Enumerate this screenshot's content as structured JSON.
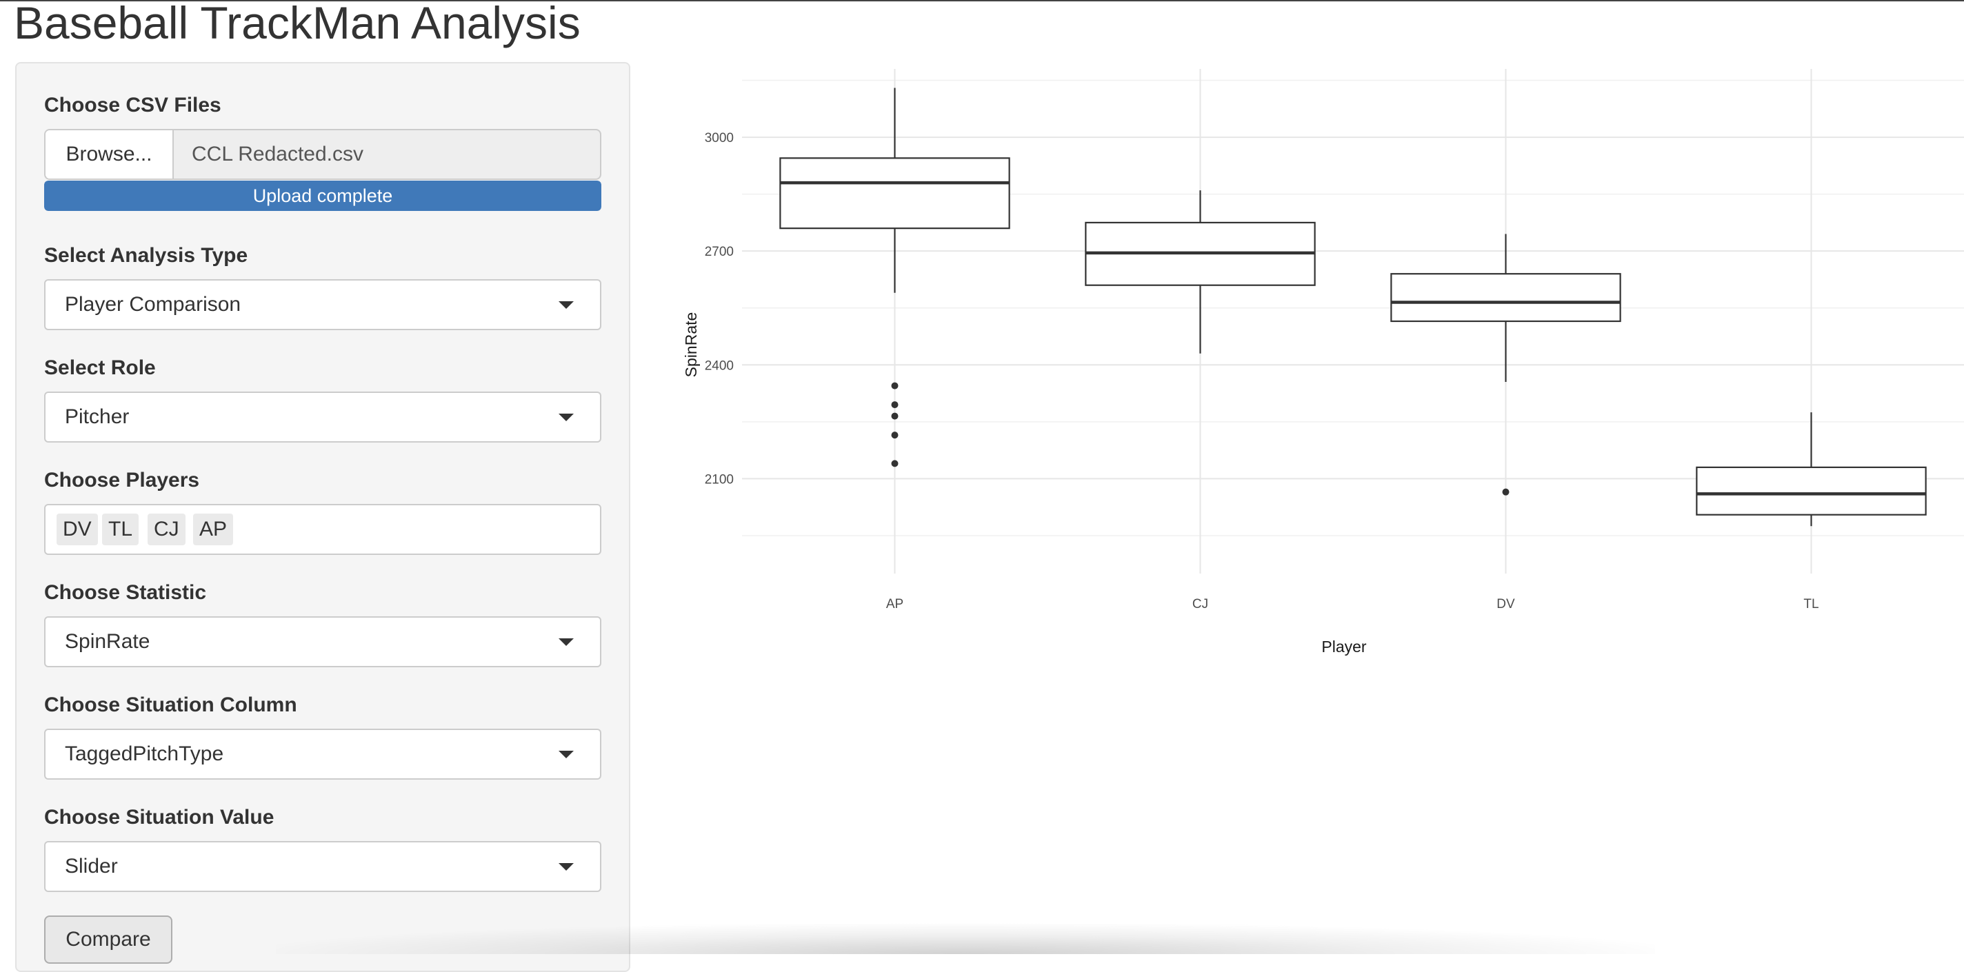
{
  "app": {
    "title": "Baseball TrackMan Analysis"
  },
  "sidebar": {
    "file": {
      "label": "Choose CSV Files",
      "browse_label": "Browse...",
      "filename": "CCL Redacted.csv",
      "progress_text": "Upload complete",
      "progress": 1.0
    },
    "analysis_type": {
      "label": "Select Analysis Type",
      "value": "Player Comparison"
    },
    "role": {
      "label": "Select Role",
      "value": "Pitcher"
    },
    "players": {
      "label": "Choose Players",
      "selected": [
        "DV",
        "TL",
        "CJ",
        "AP"
      ]
    },
    "statistic": {
      "label": "Choose Statistic",
      "value": "SpinRate"
    },
    "situation_column": {
      "label": "Choose Situation Column",
      "value": "TaggedPitchType"
    },
    "situation_value": {
      "label": "Choose Situation Value",
      "value": "Slider"
    },
    "compare_label": "Compare"
  },
  "chart_data": {
    "type": "boxplot",
    "title": "",
    "xlabel": "Player",
    "ylabel": "SpinRate",
    "categories": [
      "AP",
      "CJ",
      "DV",
      "TL"
    ],
    "ylim": [
      1850,
      3180
    ],
    "yticks": [
      2100,
      2400,
      2700,
      3000
    ],
    "grid": true,
    "legend": "none",
    "boxes": [
      {
        "category": "AP",
        "min": 2590,
        "q1": 2760,
        "median": 2880,
        "q3": 2945,
        "max": 3130,
        "outliers": [
          2345,
          2295,
          2265,
          2215,
          2140
        ]
      },
      {
        "category": "CJ",
        "min": 2430,
        "q1": 2610,
        "median": 2695,
        "q3": 2775,
        "max": 2860,
        "outliers": []
      },
      {
        "category": "DV",
        "min": 2355,
        "q1": 2515,
        "median": 2565,
        "q3": 2640,
        "max": 2745,
        "outliers": [
          2065
        ]
      },
      {
        "category": "TL",
        "min": 1975,
        "q1": 2005,
        "median": 2060,
        "q3": 2130,
        "max": 2275,
        "outliers": []
      }
    ]
  }
}
